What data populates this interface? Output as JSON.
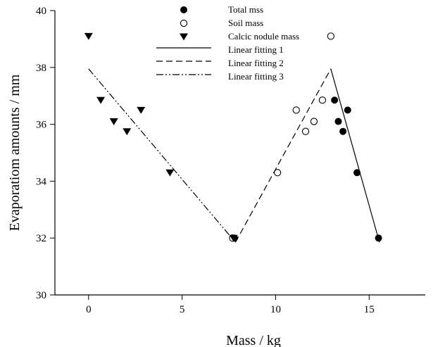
{
  "chart_data": {
    "type": "scatter",
    "xlabel": "Mass / kg",
    "ylabel": "Evaporatiom amounts / mm",
    "xlim": [
      -1.8,
      18
    ],
    "ylim": [
      30,
      40
    ],
    "xticks": [
      0,
      5,
      10,
      15
    ],
    "yticks": [
      30,
      32,
      34,
      36,
      38,
      40
    ],
    "grid": false,
    "legend_position": "top-center",
    "series": [
      {
        "name": "Total mss",
        "kind": "points",
        "marker": "filled-circle",
        "points": [
          [
            7.8,
            32.0
          ],
          [
            13.15,
            36.85
          ],
          [
            13.35,
            36.1
          ],
          [
            13.6,
            35.75
          ],
          [
            13.85,
            36.5
          ],
          [
            14.35,
            34.3
          ],
          [
            15.5,
            32.0
          ]
        ]
      },
      {
        "name": "Soil mass",
        "kind": "points",
        "marker": "open-circle",
        "points": [
          [
            7.7,
            32.0
          ],
          [
            10.1,
            34.3
          ],
          [
            11.1,
            36.5
          ],
          [
            11.6,
            35.75
          ],
          [
            12.05,
            36.1
          ],
          [
            12.5,
            36.85
          ],
          [
            12.95,
            39.1
          ]
        ]
      },
      {
        "name": "Calcic nodule mass",
        "kind": "points",
        "marker": "filled-triangle-down",
        "points": [
          [
            0.0,
            39.1
          ],
          [
            0.65,
            36.85
          ],
          [
            1.35,
            36.1
          ],
          [
            2.05,
            35.75
          ],
          [
            2.8,
            36.5
          ],
          [
            4.35,
            34.3
          ],
          [
            7.75,
            32.0
          ]
        ]
      },
      {
        "name": "Linear fitting 1",
        "kind": "line",
        "dash": "solid",
        "points": [
          [
            12.95,
            37.95
          ],
          [
            15.55,
            31.85
          ]
        ]
      },
      {
        "name": "Linear fitting 2",
        "kind": "line",
        "dash": "dashed",
        "points": [
          [
            7.85,
            31.85
          ],
          [
            12.95,
            37.95
          ]
        ]
      },
      {
        "name": "Linear fitting 3",
        "kind": "line",
        "dash": "dash-dot-dot",
        "points": [
          [
            0.0,
            37.95
          ],
          [
            7.85,
            31.85
          ]
        ]
      }
    ]
  }
}
